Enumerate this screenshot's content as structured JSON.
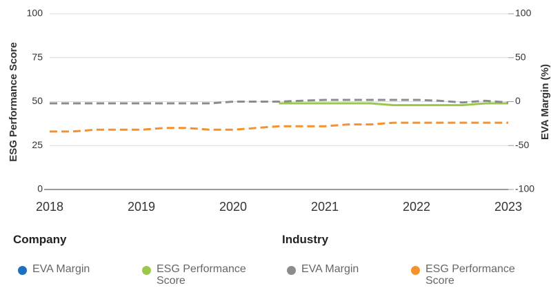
{
  "chart_data": {
    "type": "line",
    "y_label": "ESG Performance Score",
    "y2_label": "EVA Margin (%)",
    "x": [
      2018,
      2018.25,
      2018.5,
      2018.75,
      2019,
      2019.25,
      2019.5,
      2019.75,
      2020,
      2020.25,
      2020.5,
      2020.75,
      2021,
      2021.25,
      2021.5,
      2021.75,
      2022,
      2022.25,
      2022.5,
      2022.75,
      2023
    ],
    "xlim": [
      2018,
      2023
    ],
    "xticks": [
      2018,
      2019,
      2020,
      2021,
      2022,
      2023
    ],
    "ylim": [
      0,
      100
    ],
    "yticks": [
      0,
      25,
      50,
      75,
      100
    ],
    "y2lim": [
      -100,
      100
    ],
    "y2ticks": [
      -100,
      -50,
      0,
      50,
      100
    ],
    "grid": true,
    "legend_groups": [
      "Company",
      "Industry"
    ],
    "series": [
      {
        "name": "EVA Margin",
        "color": "#1f6fbf",
        "axis": "y2",
        "dashed": false,
        "values": [
          null,
          null,
          null,
          null,
          null,
          null,
          null,
          null,
          null,
          null,
          null,
          null,
          null,
          null,
          null,
          null,
          null,
          null,
          null,
          null,
          null
        ]
      },
      {
        "name": "ESG Performance Score",
        "color": "#9ac84a",
        "dashed": false,
        "values": [
          null,
          null,
          null,
          null,
          null,
          null,
          null,
          null,
          null,
          null,
          49,
          49,
          49,
          49,
          49,
          48,
          48,
          48,
          48,
          49,
          49
        ]
      },
      {
        "name": "EVA Margin",
        "color": "#8c8c8c",
        "axis": "y2",
        "dashed": true,
        "values": [
          -2,
          -2,
          -2,
          -2,
          -2,
          -2,
          -2,
          -2,
          0,
          0,
          0,
          1,
          2,
          2,
          2,
          2,
          2,
          1,
          -1,
          1,
          -1
        ]
      },
      {
        "name": "ESG Performance Score",
        "color": "#f5922f",
        "dashed": true,
        "values": [
          33,
          33,
          34,
          34,
          34,
          35,
          35,
          34,
          34,
          35,
          36,
          36,
          36,
          37,
          37,
          38,
          38,
          38,
          38,
          38,
          38
        ]
      }
    ]
  }
}
